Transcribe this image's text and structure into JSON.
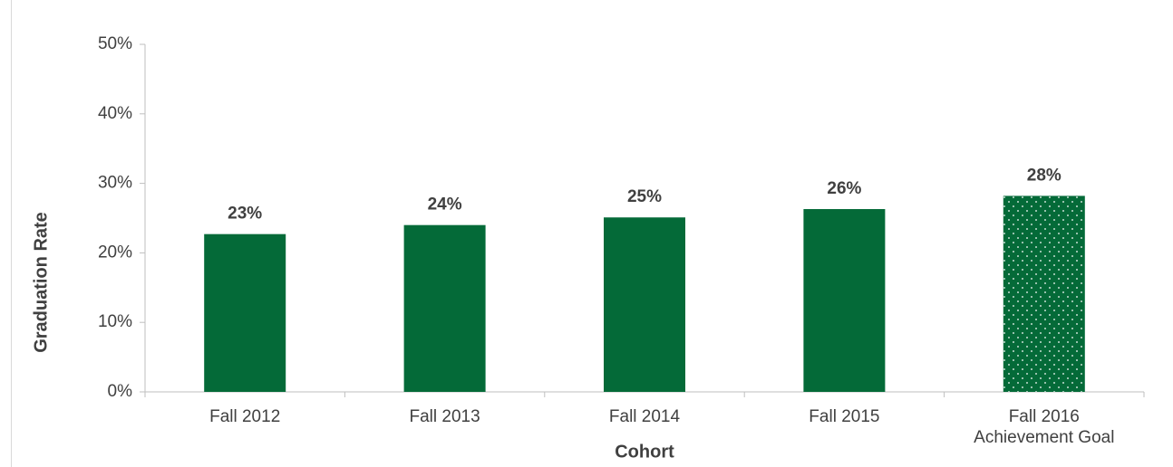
{
  "chart_data": {
    "type": "bar",
    "categories": [
      "Fall 2012",
      "Fall 2013",
      "Fall 2014",
      "Fall 2015",
      "Fall 2016\nAchievement Goal"
    ],
    "values": [
      22.7,
      24.0,
      25.1,
      26.3,
      28.2
    ],
    "value_labels": [
      "23%",
      "24%",
      "25%",
      "26%",
      "28%"
    ],
    "color": "#046a38",
    "fill_styles": [
      "solid",
      "solid",
      "solid",
      "solid",
      "dots"
    ],
    "x_label": "Cohort",
    "y_label": "Graduation Rate",
    "ylim": [
      0,
      50
    ],
    "yticks": [
      {
        "value": 0,
        "label": "0%"
      },
      {
        "value": 10,
        "label": "10%"
      },
      {
        "value": 20,
        "label": "20%"
      },
      {
        "value": 30,
        "label": "30%"
      },
      {
        "value": 40,
        "label": "40%"
      },
      {
        "value": 50,
        "label": "50%"
      }
    ],
    "grid": false
  }
}
